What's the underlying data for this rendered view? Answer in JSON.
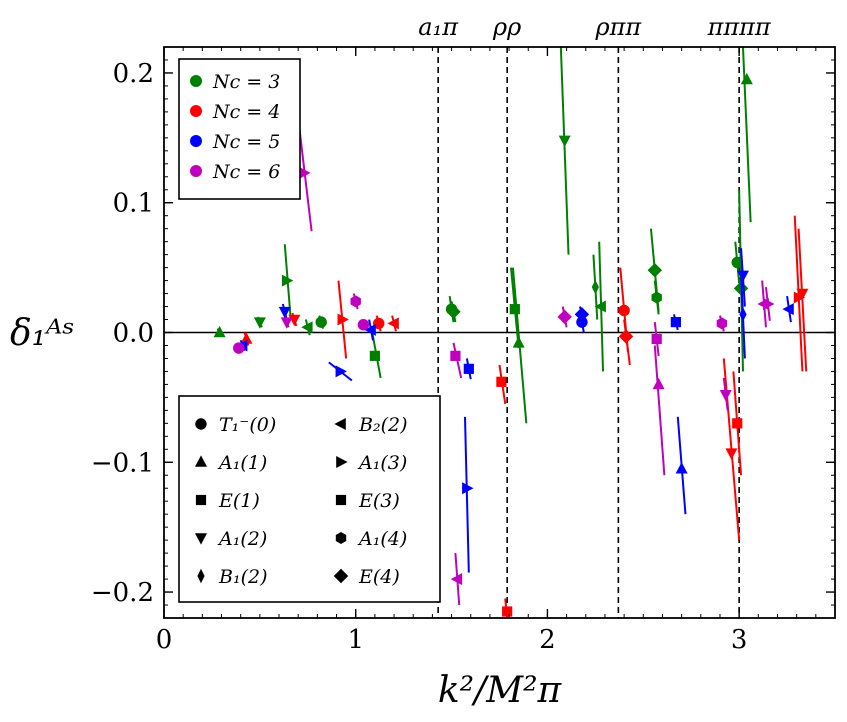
{
  "chart_data": {
    "type": "scatter",
    "xlabel": "k²/M²π",
    "ylabel": "δ₁ᴬˢ",
    "xlim": [
      0,
      3.5
    ],
    "ylim": [
      -0.22,
      0.22
    ],
    "x_ticks": [
      0,
      1,
      2,
      3
    ],
    "x_tick_labels": [
      "0",
      "1",
      "2",
      "3"
    ],
    "y_ticks": [
      -0.2,
      -0.1,
      0.0,
      0.1,
      0.2
    ],
    "y_tick_labels": [
      "−0.2",
      "−0.1",
      "0.0",
      "0.1",
      "0.2"
    ],
    "zero_line": 0,
    "thresholds": [
      {
        "label": "a₁π",
        "x": 1.43
      },
      {
        "label": "ρρ",
        "x": 1.79
      },
      {
        "label": "ρππ",
        "x": 2.37
      },
      {
        "label": "ππππ",
        "x": 3.0
      }
    ],
    "colors": {
      "3": "#008000",
      "4": "#ff0000",
      "5": "#0000ff",
      "6": "#bf00bf"
    },
    "legend_nc": [
      {
        "key": "3",
        "label": "Nc = 3"
      },
      {
        "key": "4",
        "label": "Nc = 4"
      },
      {
        "key": "5",
        "label": "Nc = 5"
      },
      {
        "key": "6",
        "label": "Nc = 6"
      }
    ],
    "legend_irreps": [
      {
        "marker": "circle",
        "label": "T₁⁻(0)"
      },
      {
        "marker": "triangle-up",
        "label": "A₁(1)"
      },
      {
        "marker": "square",
        "label": "E(1)"
      },
      {
        "marker": "triangle-down",
        "label": "A₁(2)"
      },
      {
        "marker": "thin-diamond",
        "label": "B₁(2)"
      },
      {
        "marker": "triangle-left",
        "label": "B₂(2)"
      },
      {
        "marker": "triangle-right",
        "label": "A₁(3)"
      },
      {
        "marker": "square",
        "label": "E(3)"
      },
      {
        "marker": "hexagon",
        "label": "A₁(4)"
      },
      {
        "marker": "diamond",
        "label": "E(4)"
      }
    ],
    "points": [
      {
        "nc": "3",
        "m": "triangle-up",
        "x": 0.29,
        "y": 0.0,
        "x1": 0.28,
        "y1": 0.003,
        "x2": 0.3,
        "y2": -0.003
      },
      {
        "nc": "3",
        "m": "triangle-down",
        "x": 0.5,
        "y": 0.008,
        "x1": 0.49,
        "y1": 0.012,
        "x2": 0.51,
        "y2": 0.004
      },
      {
        "nc": "3",
        "m": "triangle-right",
        "x": 0.64,
        "y": 0.04,
        "x1": 0.63,
        "y1": 0.068,
        "x2": 0.66,
        "y2": 0.012
      },
      {
        "nc": "3",
        "m": "triangle-left",
        "x": 0.75,
        "y": 0.004,
        "x1": 0.74,
        "y1": 0.01,
        "x2": 0.76,
        "y2": -0.002
      },
      {
        "nc": "3",
        "m": "circle",
        "x": 0.82,
        "y": 0.008,
        "x1": 0.81,
        "y1": 0.013,
        "x2": 0.83,
        "y2": 0.003
      },
      {
        "nc": "3",
        "m": "square",
        "x": 1.1,
        "y": -0.018,
        "x1": 1.08,
        "y1": 0.005,
        "x2": 1.13,
        "y2": -0.035
      },
      {
        "nc": "3",
        "m": "circle",
        "x": 1.5,
        "y": 0.018,
        "x1": 1.49,
        "y1": 0.028,
        "x2": 1.51,
        "y2": 0.008
      },
      {
        "nc": "3",
        "m": "diamond",
        "x": 1.51,
        "y": 0.016,
        "x1": 1.5,
        "y1": 0.024,
        "x2": 1.52,
        "y2": 0.008
      },
      {
        "nc": "3",
        "m": "square",
        "x": 1.83,
        "y": 0.018,
        "x1": 1.81,
        "y1": 0.05,
        "x2": 1.85,
        "y2": -0.012
      },
      {
        "nc": "3",
        "m": "triangle-up",
        "x": 1.85,
        "y": -0.008,
        "x1": 1.82,
        "y1": 0.05,
        "x2": 1.89,
        "y2": -0.07
      },
      {
        "nc": "3",
        "m": "triangle-down",
        "x": 2.09,
        "y": 0.148,
        "x1": 2.07,
        "y1": 0.22,
        "x2": 2.11,
        "y2": 0.06
      },
      {
        "nc": "3",
        "m": "thin-diamond",
        "x": 2.25,
        "y": 0.035,
        "x1": 2.24,
        "y1": 0.06,
        "x2": 2.26,
        "y2": 0.01
      },
      {
        "nc": "3",
        "m": "triangle-left",
        "x": 2.28,
        "y": 0.02,
        "x1": 2.27,
        "y1": 0.07,
        "x2": 2.29,
        "y2": -0.03
      },
      {
        "nc": "3",
        "m": "diamond",
        "x": 2.56,
        "y": 0.048,
        "x1": 2.54,
        "y1": 0.08,
        "x2": 2.58,
        "y2": 0.016
      },
      {
        "nc": "3",
        "m": "hexagon",
        "x": 2.57,
        "y": 0.027,
        "x1": 2.56,
        "y1": 0.04,
        "x2": 2.58,
        "y2": 0.014
      },
      {
        "nc": "3",
        "m": "circle",
        "x": 2.99,
        "y": 0.054,
        "x1": 2.98,
        "y1": 0.07,
        "x2": 3.0,
        "y2": 0.038
      },
      {
        "nc": "3",
        "m": "diamond",
        "x": 3.01,
        "y": 0.034,
        "x1": 3.0,
        "y1": 0.11,
        "x2": 3.02,
        "y2": -0.03
      },
      {
        "nc": "3",
        "m": "triangle-up",
        "x": 3.04,
        "y": 0.195,
        "x1": 3.02,
        "y1": 0.22,
        "x2": 3.06,
        "y2": 0.085
      },
      {
        "nc": "4",
        "m": "triangle-up",
        "x": 0.43,
        "y": -0.005,
        "x1": 0.42,
        "y1": 0.0,
        "x2": 0.44,
        "y2": -0.01
      },
      {
        "nc": "4",
        "m": "triangle-down",
        "x": 0.68,
        "y": 0.01,
        "x1": 0.67,
        "y1": 0.015,
        "x2": 0.69,
        "y2": 0.005
      },
      {
        "nc": "4",
        "m": "triangle-right",
        "x": 0.93,
        "y": 0.01,
        "x1": 0.91,
        "y1": 0.04,
        "x2": 0.95,
        "y2": -0.02
      },
      {
        "nc": "4",
        "m": "circle",
        "x": 1.12,
        "y": 0.007,
        "x1": 1.11,
        "y1": 0.013,
        "x2": 1.13,
        "y2": 0.001
      },
      {
        "nc": "4",
        "m": "triangle-left",
        "x": 1.2,
        "y": 0.007,
        "x1": 1.19,
        "y1": 0.013,
        "x2": 1.21,
        "y2": 0.001
      },
      {
        "nc": "4",
        "m": "square",
        "x": 1.76,
        "y": -0.038,
        "x1": 1.75,
        "y1": -0.025,
        "x2": 1.78,
        "y2": -0.055
      },
      {
        "nc": "4",
        "m": "square",
        "x": 1.79,
        "y": -0.215,
        "x1": 1.78,
        "y1": -0.205,
        "x2": 1.79,
        "y2": -0.22
      },
      {
        "nc": "4",
        "m": "circle",
        "x": 2.4,
        "y": 0.017,
        "x1": 2.38,
        "y1": 0.05,
        "x2": 2.42,
        "y2": -0.015
      },
      {
        "nc": "4",
        "m": "diamond",
        "x": 2.41,
        "y": -0.003,
        "x1": 2.4,
        "y1": 0.01,
        "x2": 2.43,
        "y2": -0.025
      },
      {
        "nc": "4",
        "m": "triangle-down",
        "x": 2.96,
        "y": -0.093,
        "x1": 2.92,
        "y1": -0.02,
        "x2": 3.0,
        "y2": -0.16
      },
      {
        "nc": "4",
        "m": "square",
        "x": 2.99,
        "y": -0.07,
        "x1": 2.97,
        "y1": -0.03,
        "x2": 3.01,
        "y2": -0.11
      },
      {
        "nc": "4",
        "m": "triangle-right",
        "x": 3.31,
        "y": 0.027,
        "x1": 3.29,
        "y1": 0.09,
        "x2": 3.33,
        "y2": -0.03
      },
      {
        "nc": "4",
        "m": "triangle-down",
        "x": 3.33,
        "y": 0.03,
        "x1": 3.31,
        "y1": 0.08,
        "x2": 3.35,
        "y2": -0.03
      },
      {
        "nc": "5",
        "m": "triangle-left",
        "x": 0.41,
        "y": -0.01,
        "x1": 0.4,
        "y1": -0.006,
        "x2": 0.42,
        "y2": -0.014
      },
      {
        "nc": "5",
        "m": "triangle-down",
        "x": 0.63,
        "y": 0.016,
        "x1": 0.62,
        "y1": 0.022,
        "x2": 0.64,
        "y2": 0.01
      },
      {
        "nc": "5",
        "m": "triangle-right",
        "x": 0.92,
        "y": -0.03,
        "x1": 0.86,
        "y1": -0.023,
        "x2": 0.98,
        "y2": -0.037
      },
      {
        "nc": "5",
        "m": "triangle-left",
        "x": 1.08,
        "y": 0.002,
        "x1": 1.07,
        "y1": 0.01,
        "x2": 1.09,
        "y2": -0.006
      },
      {
        "nc": "5",
        "m": "square",
        "x": 1.59,
        "y": -0.028,
        "x1": 1.58,
        "y1": -0.02,
        "x2": 1.6,
        "y2": -0.036
      },
      {
        "nc": "5",
        "m": "triangle-right",
        "x": 1.58,
        "y": -0.12,
        "x1": 1.57,
        "y1": -0.065,
        "x2": 1.59,
        "y2": -0.185
      },
      {
        "nc": "5",
        "m": "circle",
        "x": 2.18,
        "y": 0.008,
        "x1": 2.17,
        "y1": 0.016,
        "x2": 2.19,
        "y2": 0.0
      },
      {
        "nc": "5",
        "m": "diamond",
        "x": 2.18,
        "y": 0.014,
        "x1": 2.17,
        "y1": 0.02,
        "x2": 2.19,
        "y2": 0.008
      },
      {
        "nc": "5",
        "m": "square",
        "x": 2.67,
        "y": 0.008,
        "x1": 2.66,
        "y1": 0.014,
        "x2": 2.68,
        "y2": 0.002
      },
      {
        "nc": "5",
        "m": "triangle-up",
        "x": 2.7,
        "y": -0.105,
        "x1": 2.68,
        "y1": -0.065,
        "x2": 2.72,
        "y2": -0.14
      },
      {
        "nc": "5",
        "m": "triangle-down",
        "x": 3.02,
        "y": 0.044,
        "x1": 3.01,
        "y1": 0.065,
        "x2": 3.03,
        "y2": 0.02
      },
      {
        "nc": "5",
        "m": "thin-diamond",
        "x": 3.02,
        "y": 0.014,
        "x1": 3.01,
        "y1": 0.045,
        "x2": 3.03,
        "y2": -0.02
      },
      {
        "nc": "5",
        "m": "triangle-left",
        "x": 3.26,
        "y": 0.018,
        "x1": 3.25,
        "y1": 0.028,
        "x2": 3.27,
        "y2": 0.008
      },
      {
        "nc": "6",
        "m": "circle",
        "x": 0.39,
        "y": -0.012,
        "x1": 0.38,
        "y1": -0.008,
        "x2": 0.4,
        "y2": -0.016
      },
      {
        "nc": "6",
        "m": "triangle-down",
        "x": 0.64,
        "y": 0.008,
        "x1": 0.63,
        "y1": 0.012,
        "x2": 0.65,
        "y2": 0.004
      },
      {
        "nc": "6",
        "m": "triangle-right",
        "x": 0.73,
        "y": 0.123,
        "x1": 0.7,
        "y1": 0.165,
        "x2": 0.77,
        "y2": 0.078
      },
      {
        "nc": "6",
        "m": "hexagon",
        "x": 1.0,
        "y": 0.024,
        "x1": 0.99,
        "y1": 0.03,
        "x2": 1.01,
        "y2": 0.018
      },
      {
        "nc": "6",
        "m": "circle",
        "x": 1.04,
        "y": 0.006,
        "x1": 1.03,
        "y1": 0.01,
        "x2": 1.05,
        "y2": 0.002
      },
      {
        "nc": "6",
        "m": "square",
        "x": 1.52,
        "y": -0.018,
        "x1": 1.51,
        "y1": -0.008,
        "x2": 1.55,
        "y2": -0.035
      },
      {
        "nc": "6",
        "m": "triangle-left",
        "x": 1.53,
        "y": -0.19,
        "x1": 1.52,
        "y1": -0.17,
        "x2": 1.54,
        "y2": -0.21
      },
      {
        "nc": "6",
        "m": "diamond",
        "x": 2.09,
        "y": 0.012,
        "x1": 2.08,
        "y1": 0.02,
        "x2": 2.1,
        "y2": 0.004
      },
      {
        "nc": "6",
        "m": "square",
        "x": 2.57,
        "y": -0.005,
        "x1": 2.56,
        "y1": 0.008,
        "x2": 2.58,
        "y2": -0.018
      },
      {
        "nc": "6",
        "m": "triangle-up",
        "x": 2.58,
        "y": -0.04,
        "x1": 2.56,
        "y1": -0.01,
        "x2": 2.61,
        "y2": -0.11
      },
      {
        "nc": "6",
        "m": "hexagon",
        "x": 2.91,
        "y": 0.007,
        "x1": 2.9,
        "y1": 0.013,
        "x2": 2.92,
        "y2": 0.001
      },
      {
        "nc": "6",
        "m": "triangle-down",
        "x": 2.93,
        "y": -0.048,
        "x1": 2.92,
        "y1": -0.035,
        "x2": 2.94,
        "y2": -0.06
      },
      {
        "nc": "6",
        "m": "triangle-left",
        "x": 3.13,
        "y": 0.022,
        "x1": 3.12,
        "y1": 0.04,
        "x2": 3.14,
        "y2": 0.004
      },
      {
        "nc": "6",
        "m": "triangle-right",
        "x": 3.15,
        "y": 0.022,
        "x1": 3.14,
        "y1": 0.035,
        "x2": 3.16,
        "y2": 0.009
      }
    ]
  }
}
